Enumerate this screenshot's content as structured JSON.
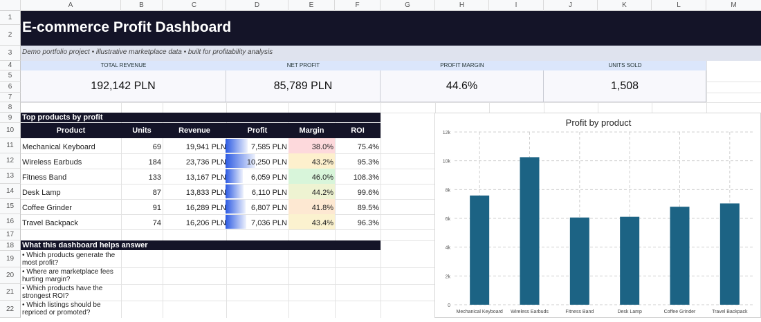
{
  "spreadsheet": {
    "columns": [
      "A",
      "B",
      "C",
      "D",
      "E",
      "F",
      "G",
      "H",
      "I",
      "J",
      "K",
      "L",
      "M"
    ],
    "rows": [
      "1",
      "2",
      "3",
      "4",
      "5",
      "6",
      "7",
      "8",
      "9",
      "10",
      "11",
      "12",
      "13",
      "14",
      "15",
      "16",
      "17",
      "18",
      "19",
      "20",
      "21",
      "22"
    ]
  },
  "dashboard": {
    "title": "E-commerce Profit Dashboard",
    "subtitle": "Demo portfolio project • illustrative marketplace data • built for profitability analysis"
  },
  "kpis": [
    {
      "label": "TOTAL REVENUE",
      "value": "192,142 PLN"
    },
    {
      "label": "NET PROFIT",
      "value": "85,789 PLN"
    },
    {
      "label": "PROFIT MARGIN",
      "value": "44.6%"
    },
    {
      "label": "UNITS SOLD",
      "value": "1,508"
    }
  ],
  "products_table": {
    "section_title": "Top products by profit",
    "headers": [
      "Product",
      "Units",
      "Revenue",
      "Profit",
      "Margin",
      "ROI"
    ],
    "rows": [
      {
        "product": "Mechanical Keyboard",
        "units": "69",
        "revenue": "19,941 PLN",
        "profit": "7,585 PLN",
        "profit_value": 7585,
        "margin": "38.0%",
        "roi": "75.4%",
        "margin_color": "#fdd9dc"
      },
      {
        "product": "Wireless Earbuds",
        "units": "184",
        "revenue": "23,736 PLN",
        "profit": "10,250 PLN",
        "profit_value": 10250,
        "margin": "43.2%",
        "roi": "95.3%",
        "margin_color": "#fdf0cd"
      },
      {
        "product": "Fitness Band",
        "units": "133",
        "revenue": "13,167 PLN",
        "profit": "6,059 PLN",
        "profit_value": 6059,
        "margin": "46.0%",
        "roi": "108.3%",
        "margin_color": "#d8f5da"
      },
      {
        "product": "Desk Lamp",
        "units": "87",
        "revenue": "13,833 PLN",
        "profit": "6,110 PLN",
        "profit_value": 6110,
        "margin": "44.2%",
        "roi": "99.6%",
        "margin_color": "#eef3d2"
      },
      {
        "product": "Coffee Grinder",
        "units": "91",
        "revenue": "16,289 PLN",
        "profit": "6,807 PLN",
        "profit_value": 6807,
        "margin": "41.8%",
        "roi": "89.5%",
        "margin_color": "#fde8d2"
      },
      {
        "product": "Travel Backpack",
        "units": "74",
        "revenue": "16,206 PLN",
        "profit": "7,036 PLN",
        "profit_value": 7036,
        "margin": "43.4%",
        "roi": "96.3%",
        "margin_color": "#fbf2cf"
      }
    ]
  },
  "questions": {
    "section_title": "What this dashboard helps answer",
    "items": [
      "• Which products generate the most profit?",
      "• Where are marketplace fees hurting margin?",
      "• Which products have the strongest ROI?",
      "• Which listings should be repriced or promoted?"
    ]
  },
  "colors": {
    "dark_band": "#141428",
    "bar": "#1c6384",
    "data_bar": "#2d5be3"
  },
  "chart_data": {
    "type": "bar",
    "title": "Profit by product",
    "categories": [
      "Mechanical Keyboard",
      "Wireless Earbuds",
      "Fitness Band",
      "Desk Lamp",
      "Coffee Grinder",
      "Travel Backpack"
    ],
    "values": [
      7585,
      10250,
      6059,
      6110,
      6807,
      7036
    ],
    "ylim": [
      0,
      12000
    ],
    "yticks": [
      "0",
      "2k",
      "4k",
      "6k",
      "8k",
      "10k",
      "12k"
    ],
    "xlabel": "",
    "ylabel": "",
    "grid": true
  }
}
